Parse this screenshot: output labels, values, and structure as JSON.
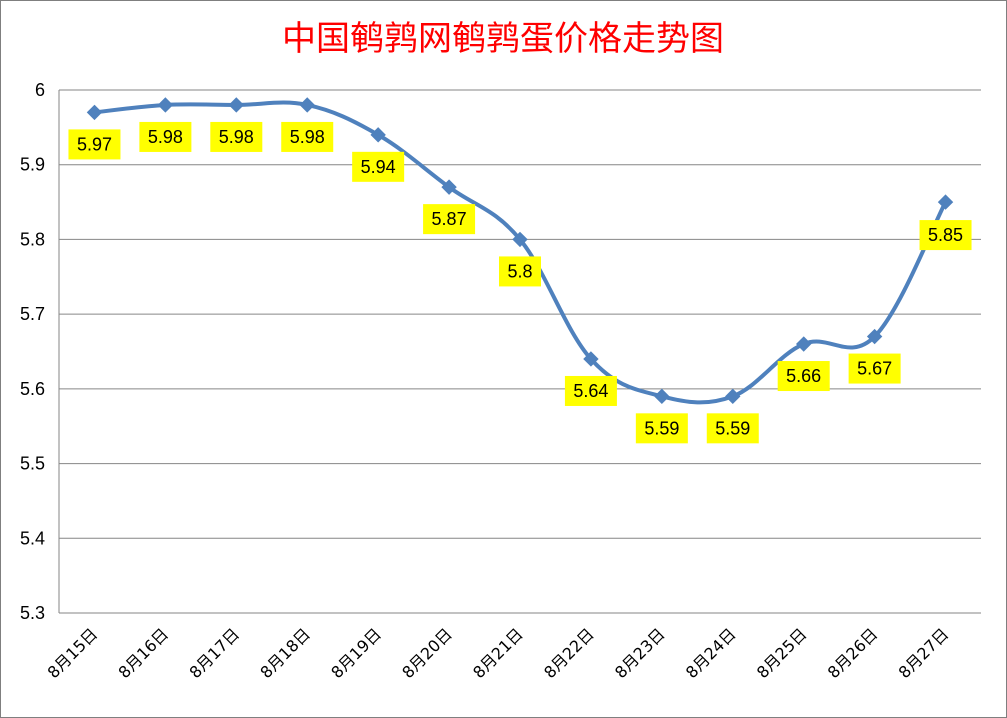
{
  "chart_data": {
    "type": "line",
    "title": "中国鹌鹑网鹌鹑蛋价格走势图",
    "categories": [
      "8月15日",
      "8月16日",
      "8月17日",
      "8月18日",
      "8月19日",
      "8月20日",
      "8月21日",
      "8月22日",
      "8月23日",
      "8月24日",
      "8月25日",
      "8月26日",
      "8月27日"
    ],
    "series": [
      {
        "values": [
          5.97,
          5.98,
          5.98,
          5.98,
          5.94,
          5.87,
          5.8,
          5.64,
          5.59,
          5.59,
          5.66,
          5.67,
          5.85
        ]
      }
    ],
    "data_labels": [
      "5.97",
      "5.98",
      "5.98",
      "5.98",
      "5.94",
      "5.87",
      "5.8",
      "5.64",
      "5.59",
      "5.59",
      "5.66",
      "5.67",
      "5.85"
    ],
    "ylim": [
      5.3,
      6
    ],
    "yticks": [
      "6",
      "5.9",
      "5.8",
      "5.7",
      "5.6",
      "5.5",
      "5.4",
      "5.3"
    ],
    "grid": true,
    "marker": "diamond",
    "colors": {
      "line": "#4f81bd",
      "label_background": "#ffff00",
      "title": "#ff0000",
      "grid": "#868686"
    }
  }
}
